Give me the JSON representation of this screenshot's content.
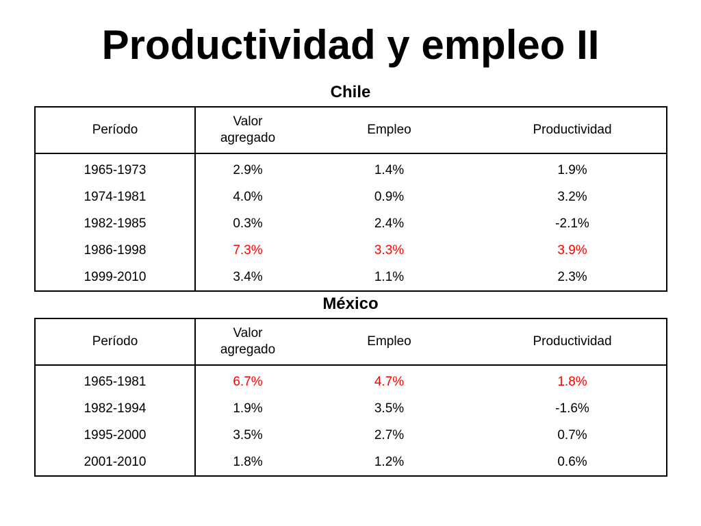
{
  "title": "Productividad y empleo II",
  "colors": {
    "highlight": "#ff0000",
    "text": "#000000",
    "background": "#ffffff"
  },
  "chile": {
    "heading": "Chile",
    "columns": [
      "Período",
      "Valor agregado",
      "Empleo",
      "Productividad"
    ],
    "rows": [
      {
        "periodo": "1965-1973",
        "valor": "2.9%",
        "empleo": "1.4%",
        "productividad": "1.9%",
        "highlight": false
      },
      {
        "periodo": "1974-1981",
        "valor": "4.0%",
        "empleo": "0.9%",
        "productividad": "3.2%",
        "highlight": false
      },
      {
        "periodo": "1982-1985",
        "valor": "0.3%",
        "empleo": "2.4%",
        "productividad": "-2.1%",
        "highlight": false
      },
      {
        "periodo": "1986-1998",
        "valor": "7.3%",
        "empleo": "3.3%",
        "productividad": "3.9%",
        "highlight": true
      },
      {
        "periodo": "1999-2010",
        "valor": "3.4%",
        "empleo": "1.1%",
        "productividad": "2.3%",
        "highlight": false
      }
    ]
  },
  "mexico": {
    "heading": "México",
    "columns": [
      "Período",
      "Valor agregado",
      "Empleo",
      "Productividad"
    ],
    "rows": [
      {
        "periodo": "1965-1981",
        "valor": "6.7%",
        "empleo": "4.7%",
        "productividad": "1.8%",
        "highlight": true
      },
      {
        "periodo": "1982-1994",
        "valor": "1.9%",
        "empleo": "3.5%",
        "productividad": "-1.6%",
        "highlight": false
      },
      {
        "periodo": "1995-2000",
        "valor": "3.5%",
        "empleo": "2.7%",
        "productividad": "0.7%",
        "highlight": false
      },
      {
        "periodo": "2001-2010",
        "valor": "1.8%",
        "empleo": "1.2%",
        "productividad": "0.6%",
        "highlight": false
      }
    ]
  }
}
